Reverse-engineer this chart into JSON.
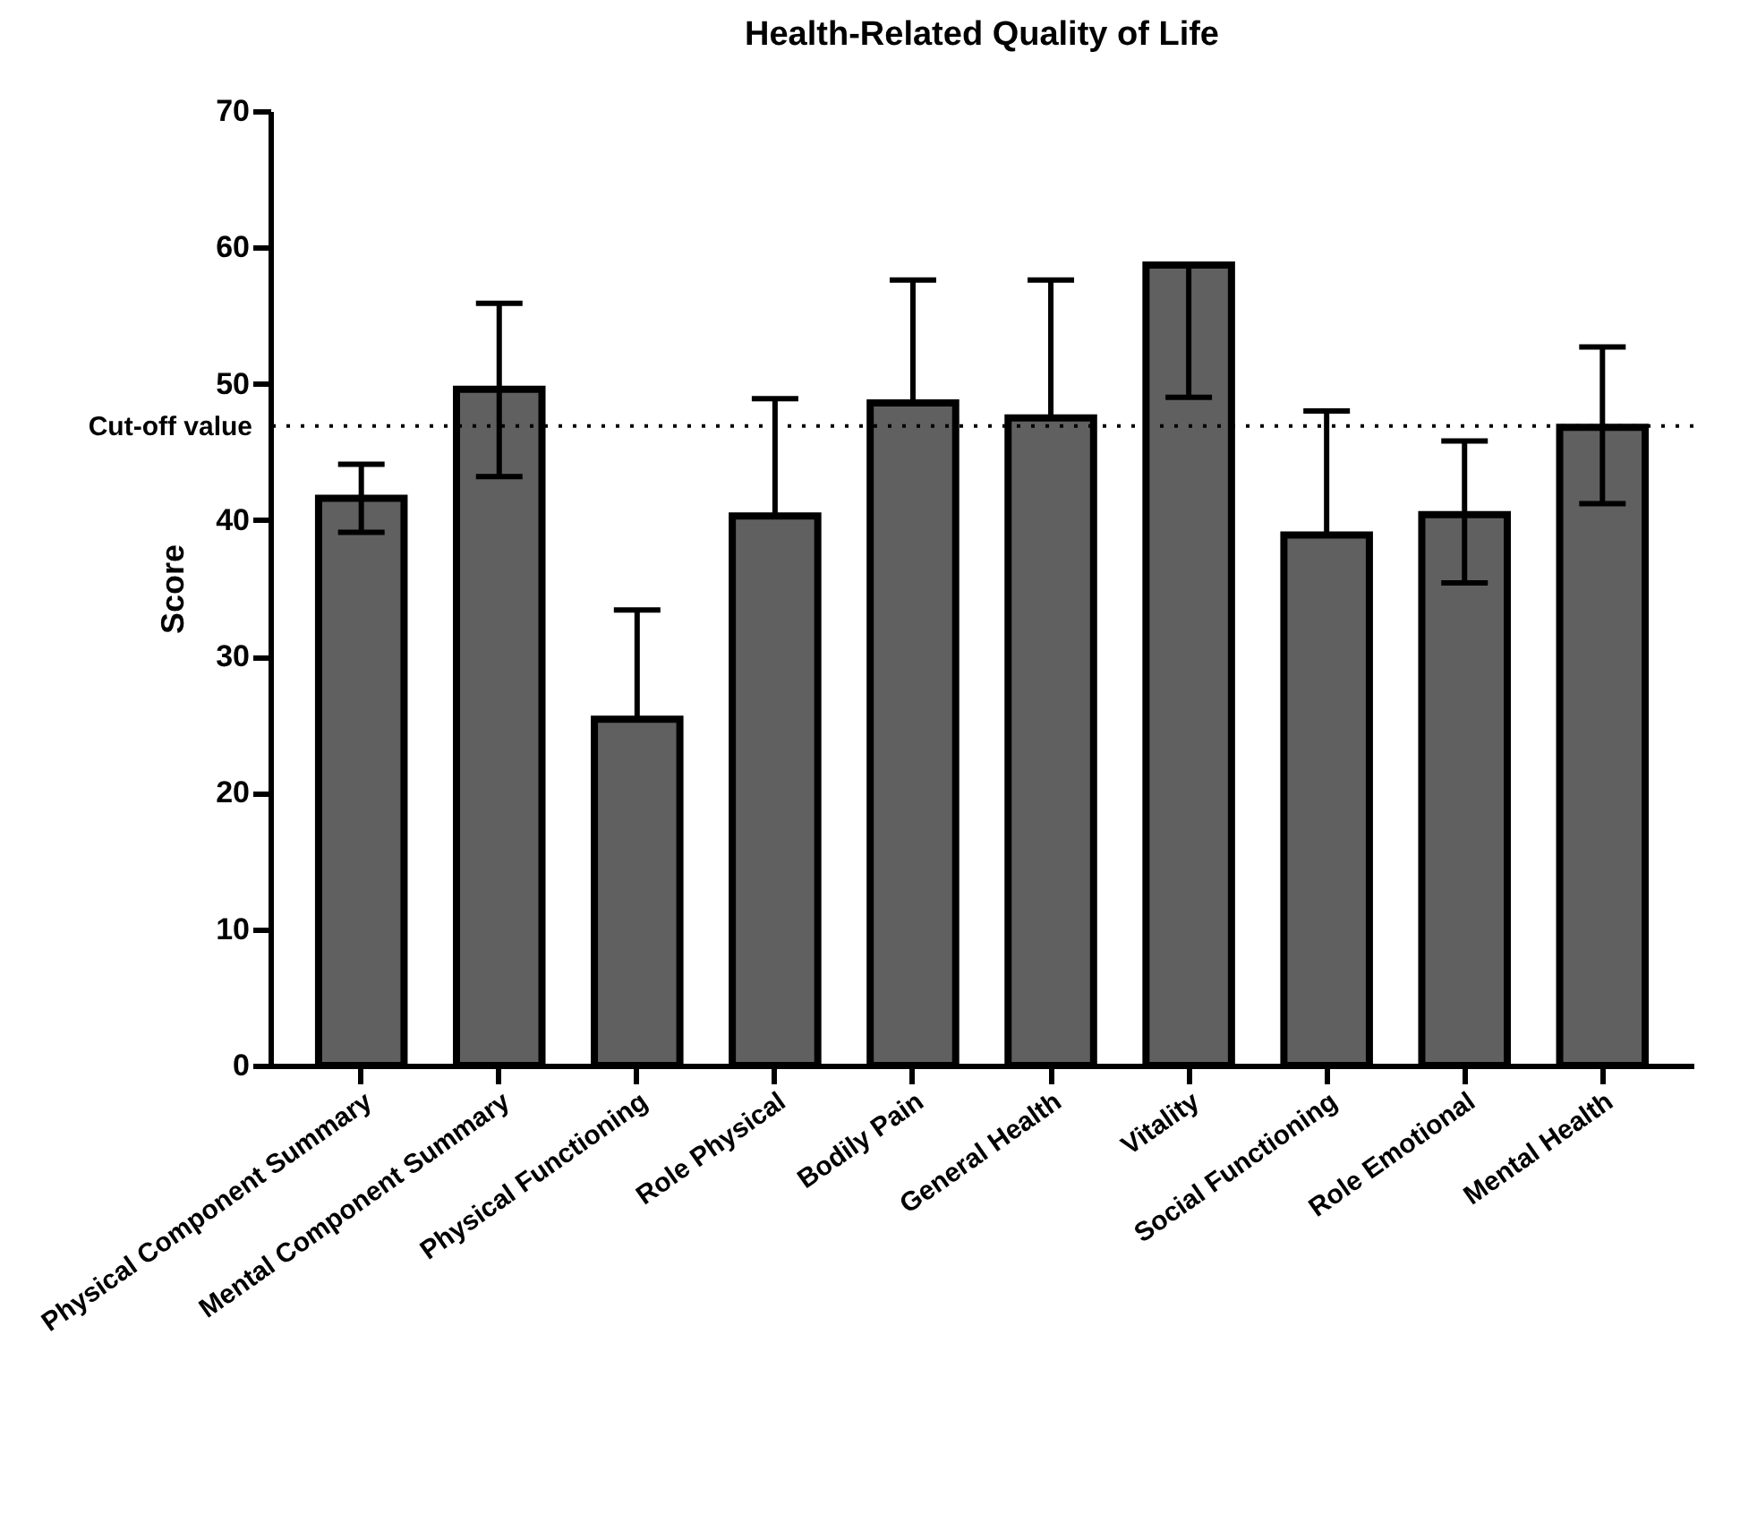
{
  "chart_data": {
    "type": "bar",
    "title": "Health-Related Quality of Life",
    "ylabel": "Score",
    "categories": [
      "Physical Component Summary",
      "Mental Component Summary",
      "Physical Functioning",
      "Role Physical",
      "Bodily Pain",
      "General Health",
      "Vitality",
      "Social Functioning",
      "Role Emotional",
      "Mental Health"
    ],
    "values": [
      41.6,
      49.6,
      25.4,
      40.3,
      48.6,
      47.5,
      58.7,
      38.9,
      40.4,
      46.8
    ],
    "errors": [
      [
        39.1,
        44.1
      ],
      [
        43.2,
        55.9
      ],
      [
        25.4,
        33.4
      ],
      [
        40.3,
        48.9
      ],
      [
        48.6,
        57.6
      ],
      [
        47.5,
        57.6
      ],
      [
        49.0,
        58.7
      ],
      [
        38.9,
        48.0
      ],
      [
        35.4,
        45.8
      ],
      [
        41.2,
        52.7
      ]
    ],
    "color": "#606060",
    "ylim": [
      0,
      70
    ],
    "yticks": [
      0,
      10,
      20,
      30,
      40,
      50,
      60,
      70
    ],
    "ref_lines": [
      {
        "axis": "y",
        "value": 46.9,
        "label": "Cut-off value",
        "line_style": "dotted"
      }
    ],
    "grid": false
  }
}
